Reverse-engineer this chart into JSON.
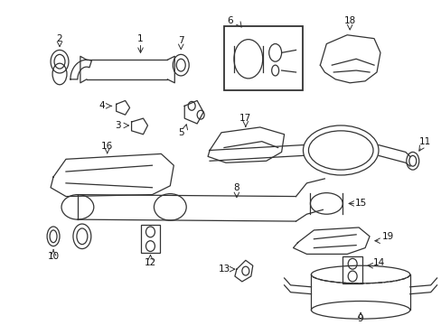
{
  "background_color": "#ffffff",
  "line_color": "#333333",
  "text_color": "#111111",
  "font_size": 7.5,
  "fig_width": 4.89,
  "fig_height": 3.6,
  "dpi": 100
}
